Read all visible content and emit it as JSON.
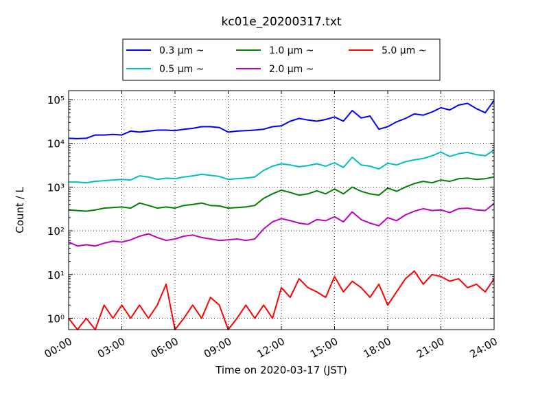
{
  "chart_data": {
    "type": "line",
    "title": "kc01e_20200317.txt",
    "xlabel": "Time on 2020-03-17 (JST)",
    "ylabel": "Count / L",
    "x_scale": "time",
    "y_scale": "log",
    "xlim": [
      "00:00",
      "24:00"
    ],
    "ylim": [
      0.55,
      160000
    ],
    "grid": true,
    "legend_position": "top-center",
    "x_ticks": [
      "00:00",
      "03:00",
      "06:00",
      "09:00",
      "12:00",
      "15:00",
      "18:00",
      "21:00",
      "24:00"
    ],
    "y_ticks": [
      {
        "value": 1,
        "label": "10⁰"
      },
      {
        "value": 10,
        "label": "10¹"
      },
      {
        "value": 100,
        "label": "10²"
      },
      {
        "value": 1000,
        "label": "10³"
      },
      {
        "value": 10000,
        "label": "10⁴"
      },
      {
        "value": 100000,
        "label": "10⁵"
      }
    ],
    "series": [
      {
        "name": "0.3 μm ~",
        "color": "#0000ff",
        "x_hours": [
          0.0,
          0.5,
          1.0,
          1.5,
          2.0,
          2.5,
          3.0,
          3.5,
          4.0,
          4.5,
          5.0,
          5.5,
          6.0,
          6.5,
          7.0,
          7.5,
          8.0,
          8.5,
          9.0,
          9.5,
          10.0,
          10.5,
          11.0,
          11.5,
          12.0,
          12.5,
          13.0,
          13.5,
          14.0,
          14.5,
          15.0,
          15.5,
          16.0,
          16.5,
          17.0,
          17.5,
          18.0,
          18.5,
          19.0,
          19.5,
          20.0,
          20.5,
          21.0,
          21.5,
          22.0,
          22.5,
          23.0,
          23.5,
          24.0
        ],
        "values": [
          13000,
          12800,
          13000,
          15500,
          15500,
          16000,
          15500,
          19000,
          18000,
          19000,
          20000,
          20000,
          19500,
          21000,
          22000,
          24000,
          24000,
          23000,
          18000,
          19000,
          19500,
          20000,
          21000,
          24000,
          25000,
          32000,
          37000,
          34000,
          32000,
          35000,
          40000,
          32000,
          56000,
          38000,
          42000,
          21000,
          24000,
          31000,
          37000,
          47000,
          44000,
          52000,
          65000,
          58000,
          75000,
          82000,
          62000,
          50000,
          96000
        ]
      },
      {
        "name": "0.5 μm ~",
        "color": "#00bfbf",
        "x_hours": [
          0.0,
          0.5,
          1.0,
          1.5,
          2.0,
          2.5,
          3.0,
          3.5,
          4.0,
          4.5,
          5.0,
          5.5,
          6.0,
          6.5,
          7.0,
          7.5,
          8.0,
          8.5,
          9.0,
          9.5,
          10.0,
          10.5,
          11.0,
          11.5,
          12.0,
          12.5,
          13.0,
          13.5,
          14.0,
          14.5,
          15.0,
          15.5,
          16.0,
          16.5,
          17.0,
          17.5,
          18.0,
          18.5,
          19.0,
          19.5,
          20.0,
          20.5,
          21.0,
          21.5,
          22.0,
          22.5,
          23.0,
          23.5,
          24.0
        ],
        "values": [
          1300,
          1300,
          1250,
          1350,
          1400,
          1450,
          1500,
          1450,
          1800,
          1700,
          1500,
          1600,
          1550,
          1700,
          1800,
          1950,
          1850,
          1750,
          1500,
          1550,
          1600,
          1700,
          2400,
          3000,
          3400,
          3200,
          2900,
          3100,
          3400,
          3000,
          3600,
          2800,
          4800,
          3200,
          3000,
          2600,
          3500,
          3200,
          3800,
          4200,
          4500,
          5200,
          6300,
          5000,
          5800,
          6200,
          5500,
          5200,
          7000
        ]
      },
      {
        "name": "1.0 μm ~",
        "color": "#008000",
        "x_hours": [
          0.0,
          0.5,
          1.0,
          1.5,
          2.0,
          2.5,
          3.0,
          3.5,
          4.0,
          4.5,
          5.0,
          5.5,
          6.0,
          6.5,
          7.0,
          7.5,
          8.0,
          8.5,
          9.0,
          9.5,
          10.0,
          10.5,
          11.0,
          11.5,
          12.0,
          12.5,
          13.0,
          13.5,
          14.0,
          14.5,
          15.0,
          15.5,
          16.0,
          16.5,
          17.0,
          17.5,
          18.0,
          18.5,
          19.0,
          19.5,
          20.0,
          20.5,
          21.0,
          21.5,
          22.0,
          22.5,
          23.0,
          23.5,
          24.0
        ],
        "values": [
          300,
          290,
          280,
          300,
          330,
          340,
          350,
          330,
          430,
          380,
          330,
          350,
          330,
          380,
          400,
          430,
          380,
          370,
          330,
          340,
          350,
          380,
          550,
          700,
          850,
          750,
          650,
          700,
          820,
          700,
          900,
          700,
          1000,
          800,
          700,
          650,
          950,
          800,
          1000,
          1200,
          1350,
          1250,
          1450,
          1350,
          1550,
          1600,
          1500,
          1550,
          1700
        ]
      },
      {
        "name": "2.0 μm ~",
        "color": "#bf00bf",
        "x_hours": [
          0.0,
          0.5,
          1.0,
          1.5,
          2.0,
          2.5,
          3.0,
          3.5,
          4.0,
          4.5,
          5.0,
          5.5,
          6.0,
          6.5,
          7.0,
          7.5,
          8.0,
          8.5,
          9.0,
          9.5,
          10.0,
          10.5,
          11.0,
          11.5,
          12.0,
          12.5,
          13.0,
          13.5,
          14.0,
          14.5,
          15.0,
          15.5,
          16.0,
          16.5,
          17.0,
          17.5,
          18.0,
          18.5,
          19.0,
          19.5,
          20.0,
          20.5,
          21.0,
          21.5,
          22.0,
          22.5,
          23.0,
          23.5,
          24.0
        ],
        "values": [
          55,
          45,
          48,
          45,
          52,
          58,
          55,
          62,
          75,
          85,
          70,
          60,
          65,
          75,
          80,
          70,
          65,
          60,
          62,
          65,
          60,
          65,
          110,
          160,
          190,
          170,
          150,
          140,
          180,
          170,
          210,
          160,
          270,
          180,
          150,
          130,
          200,
          170,
          230,
          280,
          320,
          290,
          300,
          260,
          320,
          330,
          300,
          290,
          420
        ]
      },
      {
        "name": "5.0 μm ~",
        "color": "#ff0000",
        "x_hours": [
          0.0,
          0.5,
          1.0,
          1.5,
          2.0,
          2.5,
          3.0,
          3.5,
          4.0,
          4.5,
          5.0,
          5.5,
          6.0,
          6.5,
          7.0,
          7.5,
          8.0,
          8.5,
          9.0,
          9.5,
          10.0,
          10.5,
          11.0,
          11.5,
          12.0,
          12.5,
          13.0,
          13.5,
          14.0,
          14.5,
          15.0,
          15.5,
          16.0,
          16.5,
          17.0,
          17.5,
          18.0,
          18.5,
          19.0,
          19.5,
          20.0,
          20.5,
          21.0,
          21.5,
          22.0,
          22.5,
          23.0,
          23.5,
          24.0
        ],
        "values": [
          1,
          0.5,
          1,
          0.5,
          2,
          1,
          2,
          1,
          2,
          1,
          2,
          6,
          0.5,
          1,
          2,
          1,
          3,
          2,
          0.5,
          1,
          2,
          1,
          2,
          1,
          5,
          3,
          8,
          5,
          4,
          3,
          9,
          4,
          7,
          5,
          3,
          6,
          2,
          4,
          8,
          12,
          6,
          10,
          9,
          7,
          8,
          5,
          6,
          4,
          8
        ]
      }
    ]
  }
}
